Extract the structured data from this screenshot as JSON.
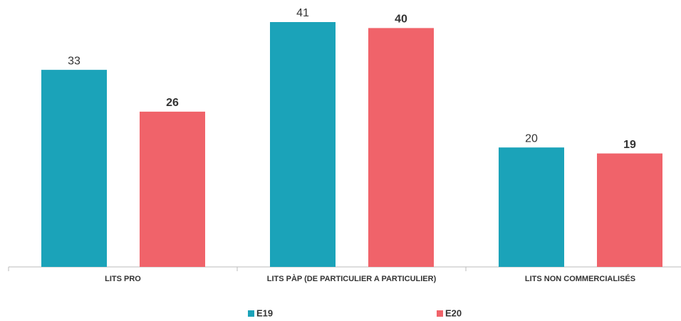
{
  "chart_data": {
    "type": "bar",
    "categories": [
      "LITS PRO",
      "LITS PÀP (DE PARTICULIER A PARTICULIER)",
      "LITS NON COMMERCIALISÉS"
    ],
    "series": [
      {
        "name": "E19",
        "color": "#1ba3b9",
        "values": [
          33,
          41,
          20
        ]
      },
      {
        "name": "E20",
        "color": "#f0636a",
        "values": [
          26,
          40,
          19
        ]
      }
    ],
    "legend": "bottom"
  }
}
